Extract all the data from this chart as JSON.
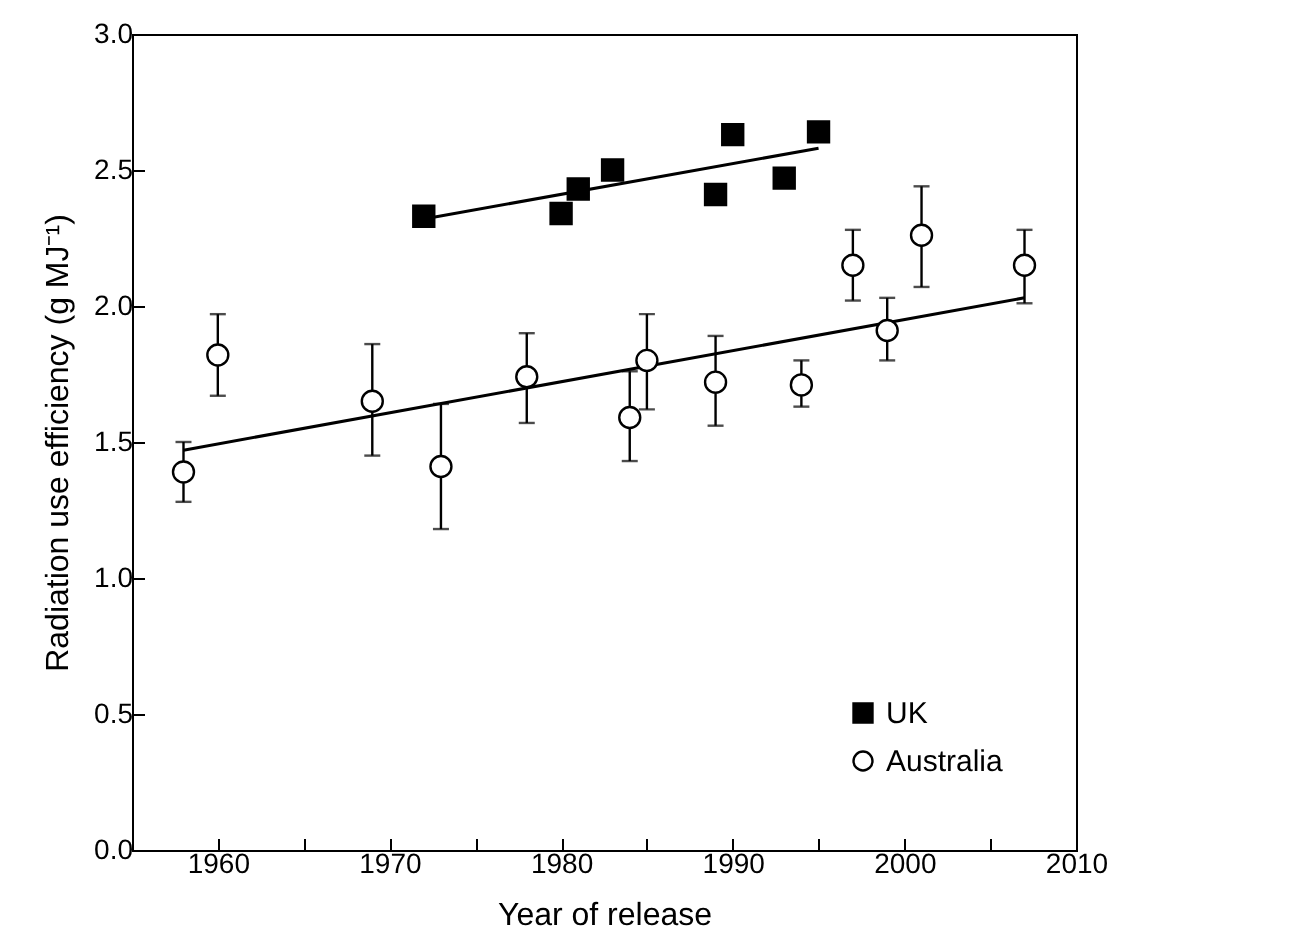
{
  "chart_data": {
    "type": "scatter",
    "xlabel": "Year of release",
    "ylabel": "Radiation use efficiency (g MJ⁻¹)",
    "xlim": [
      1955,
      2010
    ],
    "xticks": [
      {
        "value": 1955,
        "label": null
      },
      1960,
      {
        "value": 1965,
        "label": null
      },
      1970,
      {
        "value": 1975,
        "label": null
      },
      1980,
      {
        "value": 1985,
        "label": null
      },
      1990,
      {
        "value": 1995,
        "label": null
      },
      2000,
      {
        "value": 2005,
        "label": null
      },
      2010
    ],
    "ylim": [
      0,
      3
    ],
    "yticks": [
      {
        "value": 0,
        "label": "0.0"
      },
      {
        "value": 0.5,
        "label": "0.5"
      },
      {
        "value": 1,
        "label": "1.0"
      },
      {
        "value": 1.5,
        "label": "1.5"
      },
      {
        "value": 2,
        "label": "2.0"
      },
      {
        "value": 2.5,
        "label": "2.5"
      },
      {
        "value": 3,
        "label": "3.0"
      }
    ],
    "grid": false,
    "legend": "bottom right",
    "series": [
      {
        "name": "UK",
        "type": "scatter",
        "marker": "square",
        "color": "#000000",
        "x": [
          1972,
          1980,
          1981,
          1983,
          1989,
          1990,
          1993,
          1995
        ],
        "values": [
          2.33,
          2.34,
          2.43,
          2.5,
          2.41,
          2.63,
          2.47,
          2.64
        ]
      },
      {
        "name": "Australia",
        "type": "scatter",
        "marker": "circle",
        "color": "#000000",
        "x": [
          1958,
          1960,
          1969,
          1973,
          1978,
          1984,
          1985,
          1989,
          1994,
          1997,
          1999,
          2001,
          2007
        ],
        "values": [
          1.39,
          1.82,
          1.65,
          1.41,
          1.74,
          1.59,
          1.8,
          1.72,
          1.71,
          2.15,
          1.91,
          2.26,
          2.15
        ],
        "errors": [
          [
            1.28,
            1.5
          ],
          [
            1.67,
            1.97
          ],
          [
            1.45,
            1.86
          ],
          [
            1.18,
            1.64
          ],
          [
            1.57,
            1.9
          ],
          [
            1.43,
            1.76
          ],
          [
            1.62,
            1.97
          ],
          [
            1.56,
            1.89
          ],
          [
            1.63,
            1.8
          ],
          [
            2.02,
            2.28
          ],
          [
            1.8,
            2.03
          ],
          [
            2.07,
            2.44
          ],
          [
            2.01,
            2.28
          ]
        ]
      },
      {
        "type": "line",
        "color": "#000000",
        "x": [
          1972,
          1995
        ],
        "values": [
          2.32,
          2.58
        ]
      },
      {
        "type": "line",
        "color": "#000000",
        "x": [
          1958,
          2007
        ],
        "values": [
          1.47,
          2.03
        ]
      }
    ]
  }
}
